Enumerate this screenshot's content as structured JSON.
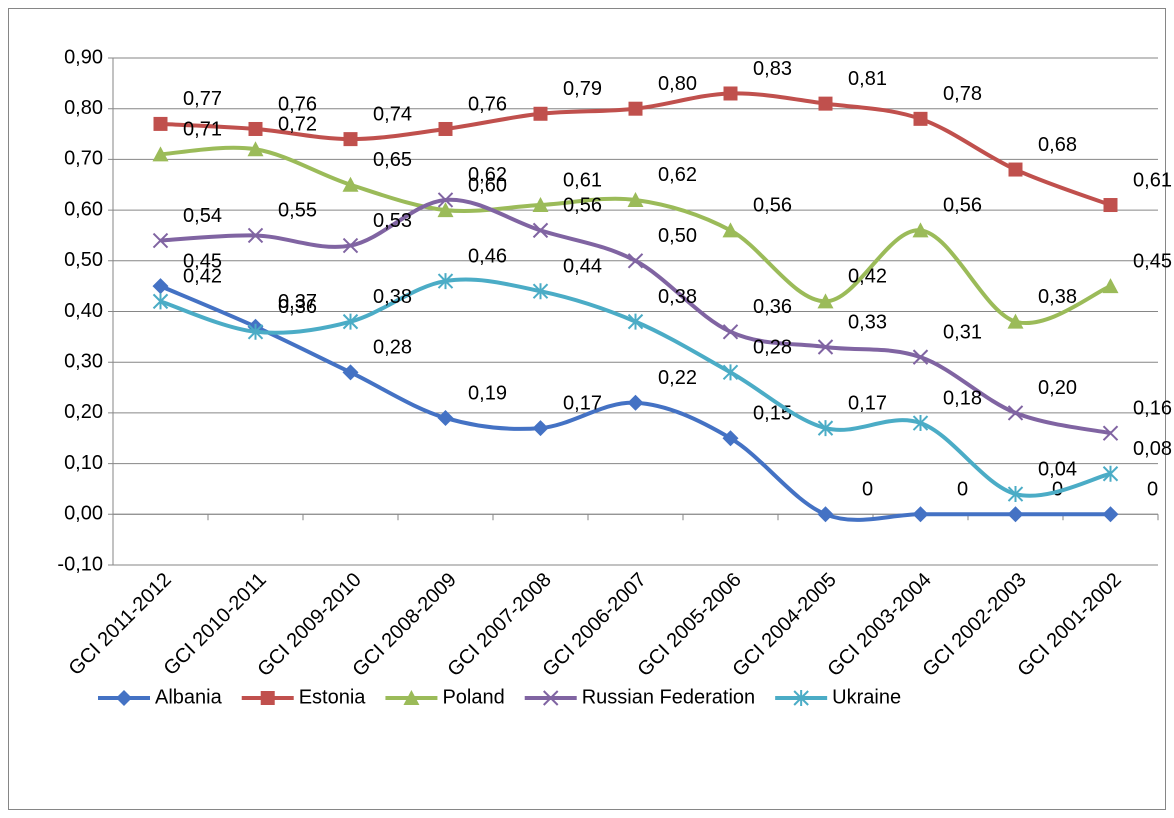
{
  "chart_data": {
    "type": "line",
    "categories": [
      "GCI 2011-2012",
      "GCI 2010-2011",
      "GCI 2009-2010",
      "GCI 2008-2009",
      "GCI 2007-2008",
      "GCI 2006-2007",
      "GCI 2005-2006",
      "GCI 2004-2005",
      "GCI 2003-2004",
      "GCI 2002-2003",
      "GCI 2001-2002"
    ],
    "series": [
      {
        "name": "Albania",
        "color": "#4472c4",
        "marker": "diamond",
        "values": [
          0.45,
          0.37,
          0.28,
          0.19,
          0.17,
          0.22,
          0.15,
          0,
          0,
          0,
          0
        ],
        "value_labels": [
          "0,45",
          "0,37",
          "0,28",
          "0,19",
          "0,17",
          "0,22",
          "0,15",
          "0",
          "0",
          "0",
          "0"
        ]
      },
      {
        "name": "Estonia",
        "color": "#c0504d",
        "marker": "square",
        "values": [
          0.77,
          0.76,
          0.74,
          0.76,
          0.79,
          0.8,
          0.83,
          0.81,
          0.78,
          0.68,
          0.61
        ],
        "value_labels": [
          "0,77",
          "0,76",
          "0,74",
          "0,76",
          "0,79",
          "0,80",
          "0,83",
          "0,81",
          "0,78",
          "0,68",
          "0,61"
        ]
      },
      {
        "name": "Poland",
        "color": "#9bbb59",
        "marker": "triangle",
        "values": [
          0.71,
          0.72,
          0.65,
          0.6,
          0.61,
          0.62,
          0.56,
          0.42,
          0.56,
          0.38,
          0.45
        ],
        "value_labels": [
          "0,71",
          "0,72",
          "0,65",
          "0,60",
          "0,61",
          "0,62",
          "0,56",
          "0,42",
          "0,56",
          "0,38",
          "0,45"
        ]
      },
      {
        "name": "Russian Federation",
        "color": "#8064a2",
        "marker": "x",
        "values": [
          0.54,
          0.55,
          0.53,
          0.62,
          0.56,
          0.5,
          0.36,
          0.33,
          0.31,
          0.2,
          0.16
        ],
        "value_labels": [
          "0,54",
          "0,55",
          "0,53",
          "0,62",
          "0,56",
          "0,50",
          "0,36",
          "0,33",
          "0,31",
          "0,20",
          "0,16"
        ]
      },
      {
        "name": "Ukraine",
        "color": "#4bacc6",
        "marker": "star",
        "values": [
          0.42,
          0.36,
          0.38,
          0.46,
          0.44,
          0.38,
          0.28,
          0.17,
          0.18,
          0.04,
          0.08
        ],
        "value_labels": [
          "0,42",
          "0,36",
          "0,38",
          "0,46",
          "0,44",
          "0,38",
          "0,28",
          "0,17",
          "0,18",
          "0,04",
          "0,08"
        ]
      }
    ],
    "ylim": [
      -0.1,
      0.9
    ],
    "yticks": [
      {
        "value": -0.1,
        "label": "-0,10"
      },
      {
        "value": 0,
        "label": "0,00"
      },
      {
        "value": 0.1,
        "label": "0,10"
      },
      {
        "value": 0.2,
        "label": "0,20"
      },
      {
        "value": 0.3,
        "label": "0,30"
      },
      {
        "value": 0.4,
        "label": "0,40"
      },
      {
        "value": 0.5,
        "label": "0,50"
      },
      {
        "value": 0.6,
        "label": "0,60"
      },
      {
        "value": 0.7,
        "label": "0,70"
      },
      {
        "value": 0.8,
        "label": "0,80"
      },
      {
        "value": 0.9,
        "label": "0,90"
      }
    ],
    "grid": true,
    "legend": "bottom",
    "smooth": true
  }
}
